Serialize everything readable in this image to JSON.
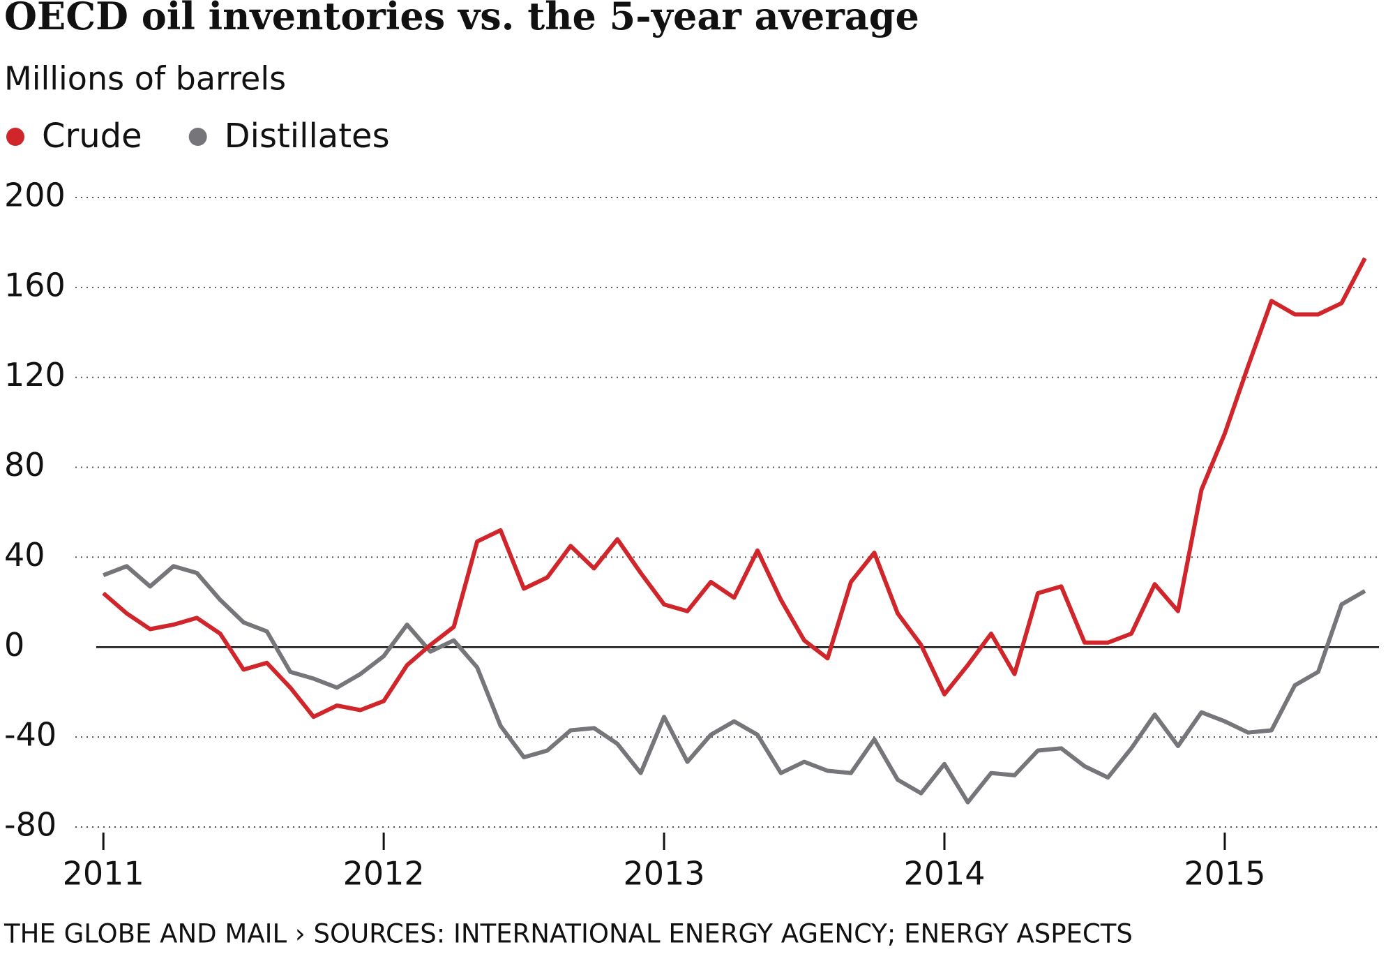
{
  "chart_data": {
    "type": "line",
    "title": "OECD oil inventories vs. the 5-year average",
    "subtitle": "Millions of barrels",
    "source": "THE GLOBE AND MAIL › SOURCES: INTERNATIONAL ENERGY AGENCY; ENERGY ASPECTS",
    "x": [
      2011,
      2011.0833,
      2011.1667,
      2011.25,
      2011.3333,
      2011.4167,
      2011.5,
      2011.5833,
      2011.6667,
      2011.75,
      2011.8333,
      2011.9167,
      2012,
      2012.0833,
      2012.1667,
      2012.25,
      2012.3333,
      2012.4167,
      2012.5,
      2012.5833,
      2012.6667,
      2012.75,
      2012.8333,
      2012.9167,
      2013,
      2013.0833,
      2013.1667,
      2013.25,
      2013.3333,
      2013.4167,
      2013.5,
      2013.5833,
      2013.6667,
      2013.75,
      2013.8333,
      2013.9167,
      2014,
      2014.0833,
      2014.1667,
      2014.25,
      2014.3333,
      2014.4167,
      2014.5,
      2014.5833,
      2014.6667,
      2014.75,
      2014.8333,
      2014.9167,
      2015,
      2015.0833,
      2015.1667,
      2015.25,
      2015.3333,
      2015.4167,
      2015.5
    ],
    "series": [
      {
        "name": "Crude",
        "color": "#d0262b",
        "values": [
          24,
          15,
          8,
          10,
          13,
          6,
          -10,
          -7,
          -18,
          -31,
          -26,
          -28,
          -24,
          -8,
          1,
          9,
          47,
          52,
          26,
          31,
          45,
          35,
          48,
          33,
          19,
          16,
          29,
          22,
          43,
          21,
          3,
          -5,
          29,
          42,
          15,
          1,
          -21,
          -8,
          6,
          -12,
          24,
          27,
          2,
          2,
          6,
          28,
          16,
          70,
          95,
          125,
          154,
          148,
          148,
          153,
          173
        ]
      },
      {
        "name": "Distillates",
        "color": "#76767a",
        "values": [
          32,
          36,
          27,
          36,
          33,
          21,
          11,
          7,
          -11,
          -14,
          -18,
          -12,
          -4,
          10,
          -2,
          3,
          -9,
          -35,
          -49,
          -46,
          -37,
          -36,
          -43,
          -56,
          -31,
          -51,
          -39,
          -33,
          -39,
          -56,
          -51,
          -55,
          -56,
          -41,
          -59,
          -65,
          -52,
          -69,
          -56,
          -57,
          -46,
          -45,
          -53,
          -58,
          -45,
          -30,
          -44,
          -29,
          -33,
          -38,
          -37,
          -17,
          -11,
          19,
          25
        ]
      }
    ],
    "xlim": [
      2010.9,
      2015.55
    ],
    "xticks": [
      2011,
      2012,
      2013,
      2014,
      2015
    ],
    "ylim": [
      -80,
      200
    ],
    "yticks": [
      -80,
      -40,
      0,
      40,
      80,
      120,
      160,
      200
    ],
    "grid": true
  }
}
